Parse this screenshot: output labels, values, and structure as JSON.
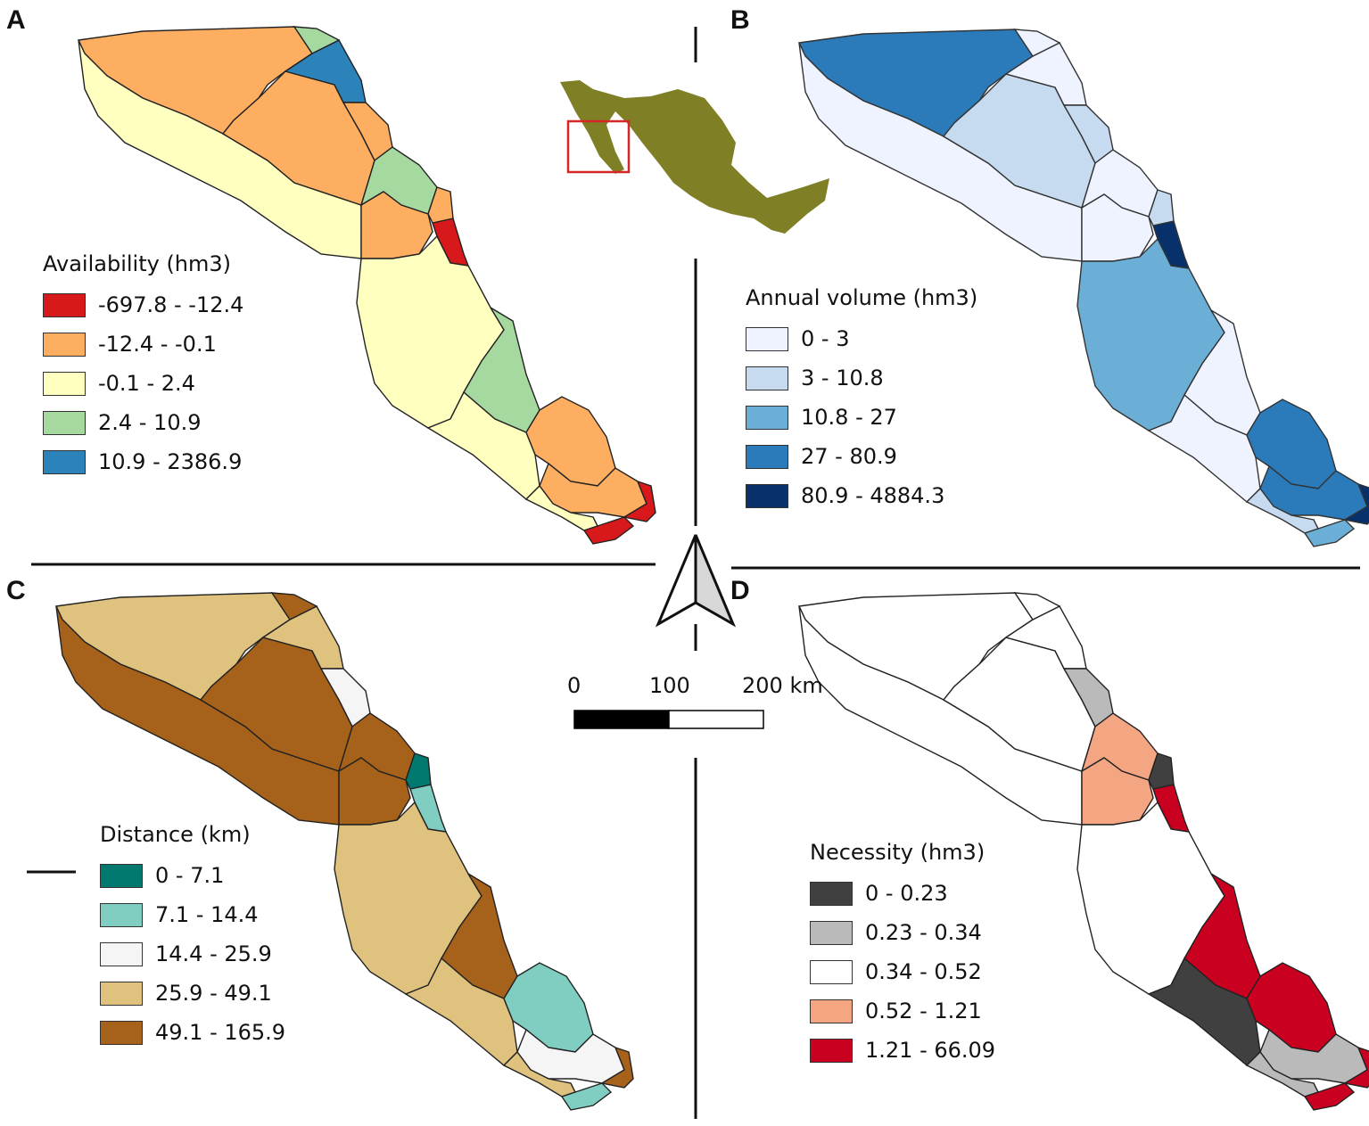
{
  "panels": {
    "A": {
      "letter": "A",
      "legend_title": "Availability (hm3)",
      "classes": [
        {
          "label": "-697.8 - -12.4",
          "color": "#d7191c"
        },
        {
          "label": "-12.4 - -0.1",
          "color": "#fdae61"
        },
        {
          "label": "-0.1 - 2.4",
          "color": "#ffffc0"
        },
        {
          "label": "2.4 - 10.9",
          "color": "#a6d9a0"
        },
        {
          "label": "10.9 - 2386.9",
          "color": "#2b83ba"
        }
      ]
    },
    "B": {
      "letter": "B",
      "legend_title": "Annual volume (hm3)",
      "classes": [
        {
          "label": "0 - 3",
          "color": "#eff3ff"
        },
        {
          "label": "3 - 10.8",
          "color": "#c6dbef"
        },
        {
          "label": "10.8 - 27",
          "color": "#6baed6"
        },
        {
          "label": "27 - 80.9",
          "color": "#2b7bba"
        },
        {
          "label": "80.9 - 4884.3",
          "color": "#08306b"
        }
      ]
    },
    "C": {
      "letter": "C",
      "legend_title": "Distance (km)",
      "classes": [
        {
          "label": "0 - 7.1",
          "color": "#01796f"
        },
        {
          "label": "7.1 - 14.4",
          "color": "#80cdc1"
        },
        {
          "label": "14.4 - 25.9",
          "color": "#f5f5f5"
        },
        {
          "label": "25.9 - 49.1",
          "color": "#dfc27d"
        },
        {
          "label": "49.1 - 165.9",
          "color": "#a6611a"
        }
      ]
    },
    "D": {
      "letter": "D",
      "legend_title": "Necessity (hm3)",
      "classes": [
        {
          "label": "0 - 0.23",
          "color": "#404040"
        },
        {
          "label": "0.23 - 0.34",
          "color": "#bababa"
        },
        {
          "label": "0.34 - 0.52",
          "color": "#ffffff"
        },
        {
          "label": "0.52 - 1.21",
          "color": "#f4a582"
        },
        {
          "label": "1.21 - 66.09",
          "color": "#ca0020"
        }
      ]
    }
  },
  "scale_bar": {
    "labels": [
      "0",
      "100",
      "200 km"
    ]
  },
  "inset": {
    "country_color": "#7f7f26",
    "highlight_color": "#d62728"
  },
  "north_arrow": {
    "icon": "north-arrow-icon"
  }
}
